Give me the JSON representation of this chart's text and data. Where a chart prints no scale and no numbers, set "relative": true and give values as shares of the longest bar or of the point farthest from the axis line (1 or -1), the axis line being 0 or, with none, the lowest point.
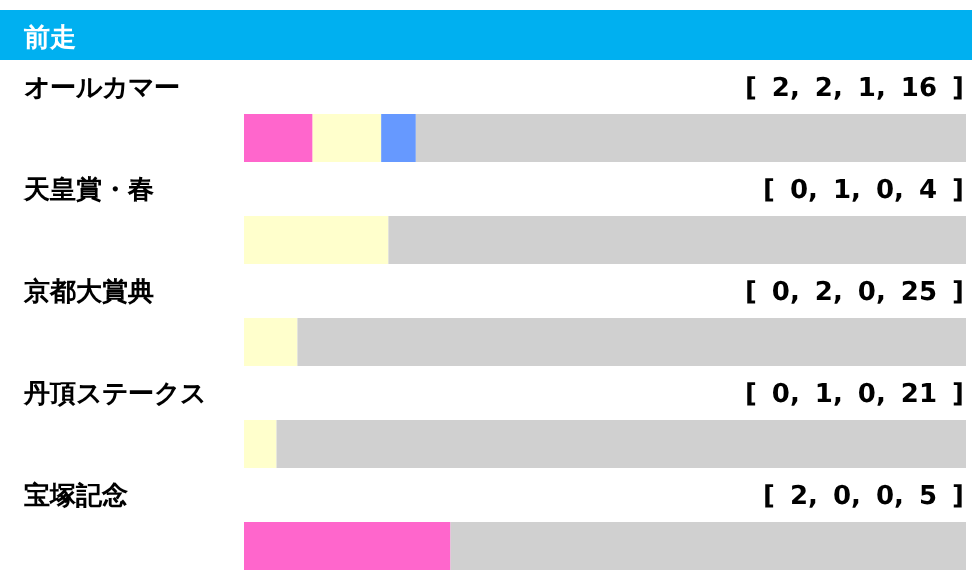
{
  "chart_data": {
    "type": "bar",
    "orientation": "horizontal",
    "stacked": true,
    "relative": true,
    "title": "前走",
    "categories": [
      "オールカマー",
      "天皇賞・春",
      "京都大賞典",
      "丹頂ステークス",
      "宝塚記念"
    ],
    "series": [
      {
        "color": "#ff66cc",
        "values": [
          0.095,
          0,
          0,
          0,
          0.286
        ]
      },
      {
        "color": "#ffffcc",
        "values": [
          0.095,
          0.2,
          0.074,
          0.045,
          0
        ]
      },
      {
        "color": "#6699ff",
        "values": [
          0.048,
          0,
          0,
          0,
          0
        ]
      },
      {
        "color": "#d0d0d0",
        "values": [
          0.762,
          0.8,
          0.926,
          0.955,
          0.714
        ]
      }
    ],
    "annotations": [
      "[ 2, 2, 1, 16 ]",
      "[ 0, 1, 0, 4 ]",
      "[ 0, 2, 0, 25 ]",
      "[ 0, 1, 0, 21 ]",
      "[ 2, 0, 0, 5 ]"
    ]
  }
}
